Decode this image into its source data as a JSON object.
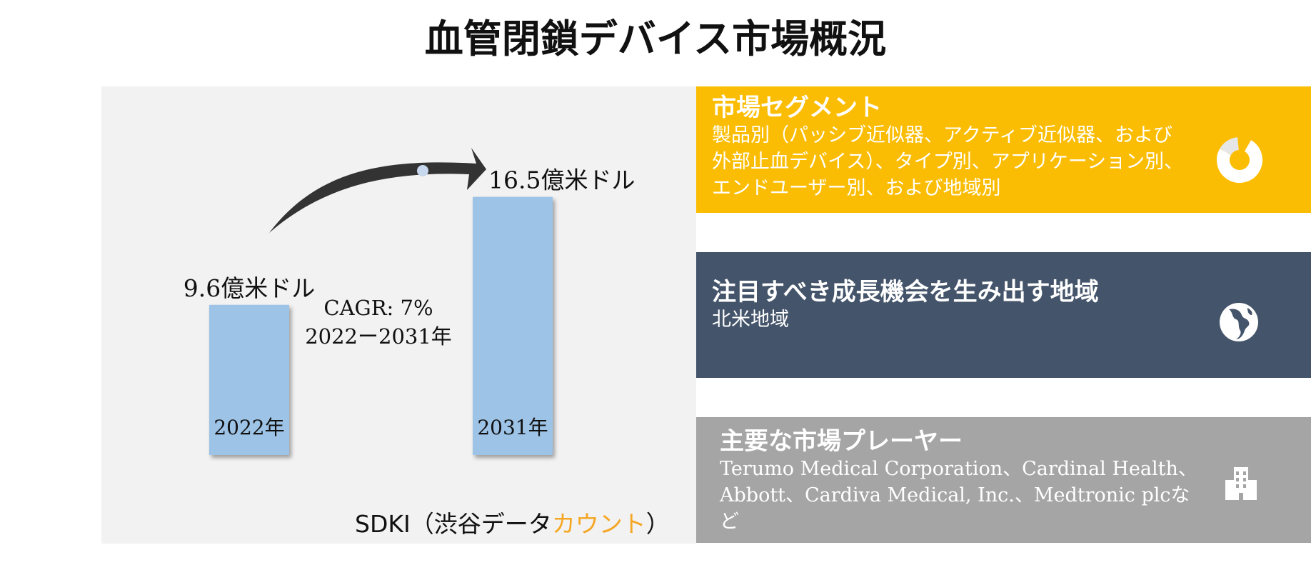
{
  "title": "血管閉鎖デバイス市場概況",
  "chart_data": {
    "type": "bar",
    "categories": [
      "2022年",
      "2031年"
    ],
    "values": [
      9.6,
      16.5
    ],
    "value_labels": [
      "9.6億米ドル",
      "16.5億米ドル"
    ],
    "unit": "億米ドル",
    "bar_color": "#9dc3e6",
    "annotation": {
      "cagr": "CAGR: 7%",
      "period": "2022ー2031年"
    }
  },
  "source": {
    "prefix": "SDKI（渋谷データ",
    "accent": "カウント",
    "suffix": "）",
    "accent_color": "#f5a623"
  },
  "cards": {
    "segments": {
      "heading": "市場セグメント",
      "body": "製品別（パッシブ近似器、アクティブ近似器、および外部止血デバイス）、タイプ別、アプリケーション別、エンドユーザー別、および地域別",
      "color": "#fbbd04",
      "icon": "donut-chart-icon"
    },
    "region": {
      "heading": "注目すべき成長機会を生み出す地域",
      "body": "北米地域",
      "color": "#44546a",
      "icon": "globe-icon"
    },
    "players": {
      "heading": "主要な市場プレーヤー",
      "body": "Terumo Medical Corporation、Cardinal Health、Abbott、Cardiva Medical, Inc.、Medtronic plcなど",
      "color": "#a5a5a5",
      "icon": "building-icon"
    }
  }
}
